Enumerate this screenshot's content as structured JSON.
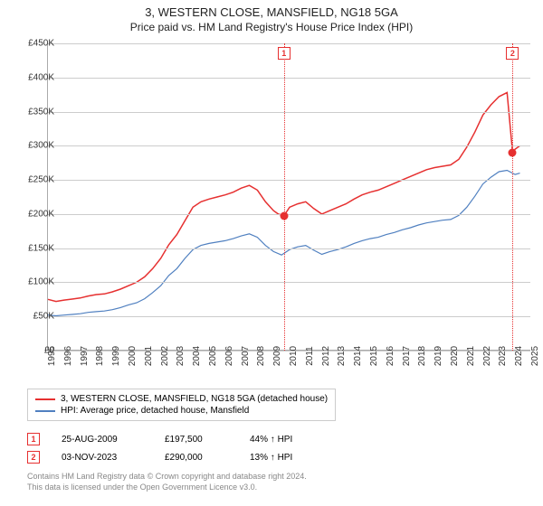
{
  "title": "3, WESTERN CLOSE, MANSFIELD, NG18 5GA",
  "subtitle": "Price paid vs. HM Land Registry's House Price Index (HPI)",
  "chart": {
    "type": "line",
    "background_color": "#ffffff",
    "grid_color": "#cccccc",
    "axis_color": "#aaaaaa",
    "ylim": [
      0,
      450000
    ],
    "y_ticks": [
      0,
      50000,
      100000,
      150000,
      200000,
      250000,
      300000,
      350000,
      400000,
      450000
    ],
    "y_tick_labels": [
      "£0",
      "£50K",
      "£100K",
      "£150K",
      "£200K",
      "£250K",
      "£300K",
      "£350K",
      "£400K",
      "£450K"
    ],
    "xlim": [
      1995,
      2025
    ],
    "x_ticks": [
      1995,
      1996,
      1997,
      1998,
      1999,
      2000,
      2001,
      2002,
      2003,
      2004,
      2005,
      2006,
      2007,
      2008,
      2009,
      2010,
      2011,
      2012,
      2013,
      2014,
      2015,
      2016,
      2017,
      2018,
      2019,
      2020,
      2021,
      2022,
      2023,
      2024,
      2025
    ],
    "series": [
      {
        "name": "3, WESTERN CLOSE, MANSFIELD, NG18 5GA (detached house)",
        "color": "#e63030",
        "line_width": 1.5,
        "data": [
          [
            1995,
            75000
          ],
          [
            1995.5,
            72000
          ],
          [
            1996,
            74000
          ],
          [
            1996.5,
            75500
          ],
          [
            1997,
            77000
          ],
          [
            1997.5,
            80000
          ],
          [
            1998,
            82000
          ],
          [
            1998.5,
            83000
          ],
          [
            1999,
            86000
          ],
          [
            1999.5,
            90000
          ],
          [
            2000,
            95000
          ],
          [
            2000.5,
            100000
          ],
          [
            2001,
            108000
          ],
          [
            2001.5,
            120000
          ],
          [
            2002,
            135000
          ],
          [
            2002.5,
            155000
          ],
          [
            2003,
            170000
          ],
          [
            2003.5,
            190000
          ],
          [
            2004,
            210000
          ],
          [
            2004.5,
            218000
          ],
          [
            2005,
            222000
          ],
          [
            2005.5,
            225000
          ],
          [
            2006,
            228000
          ],
          [
            2006.5,
            232000
          ],
          [
            2007,
            238000
          ],
          [
            2007.5,
            242000
          ],
          [
            2008,
            235000
          ],
          [
            2008.5,
            218000
          ],
          [
            2009,
            205000
          ],
          [
            2009.3,
            200000
          ],
          [
            2009.65,
            197500
          ],
          [
            2010,
            210000
          ],
          [
            2010.5,
            215000
          ],
          [
            2011,
            218000
          ],
          [
            2011.5,
            208000
          ],
          [
            2012,
            200000
          ],
          [
            2012.5,
            205000
          ],
          [
            2013,
            210000
          ],
          [
            2013.5,
            215000
          ],
          [
            2014,
            222000
          ],
          [
            2014.5,
            228000
          ],
          [
            2015,
            232000
          ],
          [
            2015.5,
            235000
          ],
          [
            2016,
            240000
          ],
          [
            2016.5,
            245000
          ],
          [
            2017,
            250000
          ],
          [
            2017.5,
            255000
          ],
          [
            2018,
            260000
          ],
          [
            2018.5,
            265000
          ],
          [
            2019,
            268000
          ],
          [
            2019.5,
            270000
          ],
          [
            2020,
            272000
          ],
          [
            2020.5,
            280000
          ],
          [
            2021,
            298000
          ],
          [
            2021.5,
            320000
          ],
          [
            2022,
            345000
          ],
          [
            2022.5,
            360000
          ],
          [
            2023,
            372000
          ],
          [
            2023.5,
            378000
          ],
          [
            2023.84,
            290000
          ],
          [
            2024,
            295000
          ],
          [
            2024.3,
            300000
          ]
        ]
      },
      {
        "name": "HPI: Average price, detached house, Mansfield",
        "color": "#5080c0",
        "line_width": 1.2,
        "data": [
          [
            1995,
            52000
          ],
          [
            1995.5,
            51000
          ],
          [
            1996,
            52000
          ],
          [
            1996.5,
            53000
          ],
          [
            1997,
            54000
          ],
          [
            1997.5,
            56000
          ],
          [
            1998,
            57000
          ],
          [
            1998.5,
            58000
          ],
          [
            1999,
            60000
          ],
          [
            1999.5,
            63000
          ],
          [
            2000,
            67000
          ],
          [
            2000.5,
            70000
          ],
          [
            2001,
            76000
          ],
          [
            2001.5,
            85000
          ],
          [
            2002,
            95000
          ],
          [
            2002.5,
            110000
          ],
          [
            2003,
            120000
          ],
          [
            2003.5,
            135000
          ],
          [
            2004,
            148000
          ],
          [
            2004.5,
            154000
          ],
          [
            2005,
            157000
          ],
          [
            2005.5,
            159000
          ],
          [
            2006,
            161000
          ],
          [
            2006.5,
            164000
          ],
          [
            2007,
            168000
          ],
          [
            2007.5,
            171000
          ],
          [
            2008,
            166000
          ],
          [
            2008.5,
            154000
          ],
          [
            2009,
            145000
          ],
          [
            2009.5,
            140000
          ],
          [
            2010,
            148000
          ],
          [
            2010.5,
            152000
          ],
          [
            2011,
            154000
          ],
          [
            2011.5,
            147000
          ],
          [
            2012,
            141000
          ],
          [
            2012.5,
            145000
          ],
          [
            2013,
            148000
          ],
          [
            2013.5,
            152000
          ],
          [
            2014,
            157000
          ],
          [
            2014.5,
            161000
          ],
          [
            2015,
            164000
          ],
          [
            2015.5,
            166000
          ],
          [
            2016,
            170000
          ],
          [
            2016.5,
            173000
          ],
          [
            2017,
            177000
          ],
          [
            2017.5,
            180000
          ],
          [
            2018,
            184000
          ],
          [
            2018.5,
            187000
          ],
          [
            2019,
            189000
          ],
          [
            2019.5,
            191000
          ],
          [
            2020,
            192000
          ],
          [
            2020.5,
            198000
          ],
          [
            2021,
            210000
          ],
          [
            2021.5,
            226000
          ],
          [
            2022,
            244000
          ],
          [
            2022.5,
            254000
          ],
          [
            2023,
            262000
          ],
          [
            2023.5,
            264000
          ],
          [
            2024,
            258000
          ],
          [
            2024.3,
            260000
          ]
        ]
      }
    ],
    "markers": [
      {
        "id": "1",
        "x": 2009.65,
        "y": 197500,
        "color": "#e63030"
      },
      {
        "id": "2",
        "x": 2023.84,
        "y": 290000,
        "color": "#e63030"
      }
    ]
  },
  "legend": {
    "items": [
      {
        "label": "3, WESTERN CLOSE, MANSFIELD, NG18 5GA (detached house)",
        "color": "#e63030"
      },
      {
        "label": "HPI: Average price, detached house, Mansfield",
        "color": "#5080c0"
      }
    ]
  },
  "transactions": [
    {
      "id": "1",
      "date": "25-AUG-2009",
      "price": "£197,500",
      "delta": "44% ↑ HPI",
      "color": "#e63030"
    },
    {
      "id": "2",
      "date": "03-NOV-2023",
      "price": "£290,000",
      "delta": "13% ↑ HPI",
      "color": "#e63030"
    }
  ],
  "attribution": {
    "line1": "Contains HM Land Registry data © Crown copyright and database right 2024.",
    "line2": "This data is licensed under the Open Government Licence v3.0."
  },
  "fonts": {
    "title_size": 13,
    "subtitle_size": 12,
    "axis_label_size": 10,
    "legend_size": 10,
    "attribution_size": 9
  }
}
